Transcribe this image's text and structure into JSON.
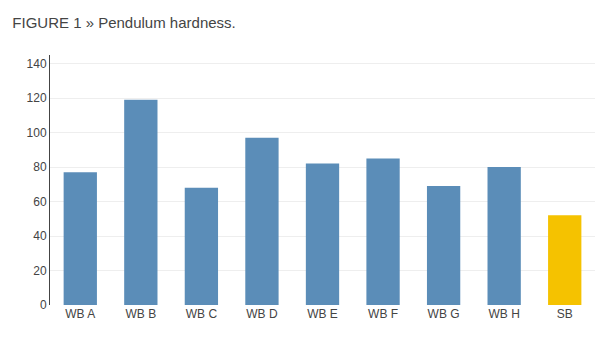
{
  "chart_data": {
    "type": "bar",
    "title": "FIGURE 1 » Pendulum hardness.",
    "categories": [
      "WB A",
      "WB B",
      "WB C",
      "WB D",
      "WB E",
      "WB F",
      "WB G",
      "WB H",
      "SB"
    ],
    "values": [
      77,
      119,
      68,
      97,
      82,
      85,
      69,
      80,
      52
    ],
    "colors": [
      "#5b8db8",
      "#5b8db8",
      "#5b8db8",
      "#5b8db8",
      "#5b8db8",
      "#5b8db8",
      "#5b8db8",
      "#5b8db8",
      "#f5c200"
    ],
    "ylim": [
      0,
      145
    ],
    "yticks": [
      0,
      20,
      40,
      60,
      80,
      100,
      120,
      140
    ],
    "grid": true
  }
}
